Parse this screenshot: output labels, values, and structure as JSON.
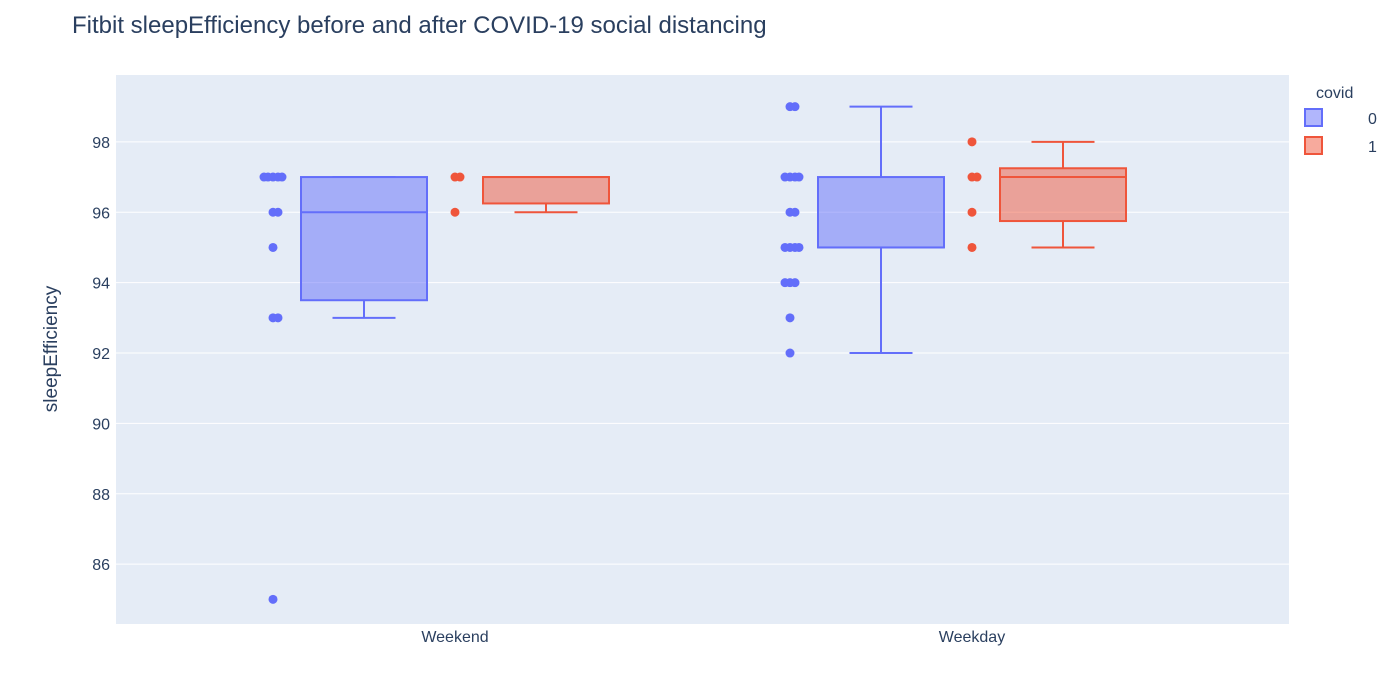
{
  "chart_data": {
    "type": "box",
    "title": "Fitbit sleepEfficiency before and after COVID-19 social distancing",
    "xlabel": "",
    "ylabel": "sleepEfficiency",
    "categories": [
      "Weekend",
      "Weekday"
    ],
    "ylim": [
      84.3,
      99.9
    ],
    "yticks": [
      86,
      88,
      90,
      92,
      94,
      96,
      98
    ],
    "grid": true,
    "legend": {
      "title": "covid",
      "position": "top-right"
    },
    "series": [
      {
        "name": "0",
        "color": "#636efa",
        "boxes": [
          {
            "category": "Weekend",
            "lowerfence": 93,
            "q1": 93.5,
            "median": 96,
            "q3": 97,
            "upperfence": 97,
            "points": [
              97,
              97,
              97,
              97,
              97,
              96,
              96,
              95,
              93,
              93,
              85
            ]
          },
          {
            "category": "Weekday",
            "lowerfence": 92,
            "q1": 95,
            "median": 95,
            "q3": 97,
            "upperfence": 99,
            "points": [
              99,
              99,
              97,
              97,
              97,
              97,
              96,
              96,
              95,
              95,
              95,
              95,
              94,
              94,
              94,
              93,
              92
            ]
          }
        ]
      },
      {
        "name": "1",
        "color": "#ef553b",
        "boxes": [
          {
            "category": "Weekend",
            "lowerfence": 96,
            "q1": 96.25,
            "median": 97,
            "q3": 97,
            "upperfence": 97,
            "points": [
              97,
              97,
              96
            ]
          },
          {
            "category": "Weekday",
            "lowerfence": 95,
            "q1": 95.75,
            "median": 97,
            "q3": 97.25,
            "upperfence": 98,
            "points": [
              98,
              97,
              97,
              96,
              95
            ]
          }
        ]
      }
    ]
  }
}
